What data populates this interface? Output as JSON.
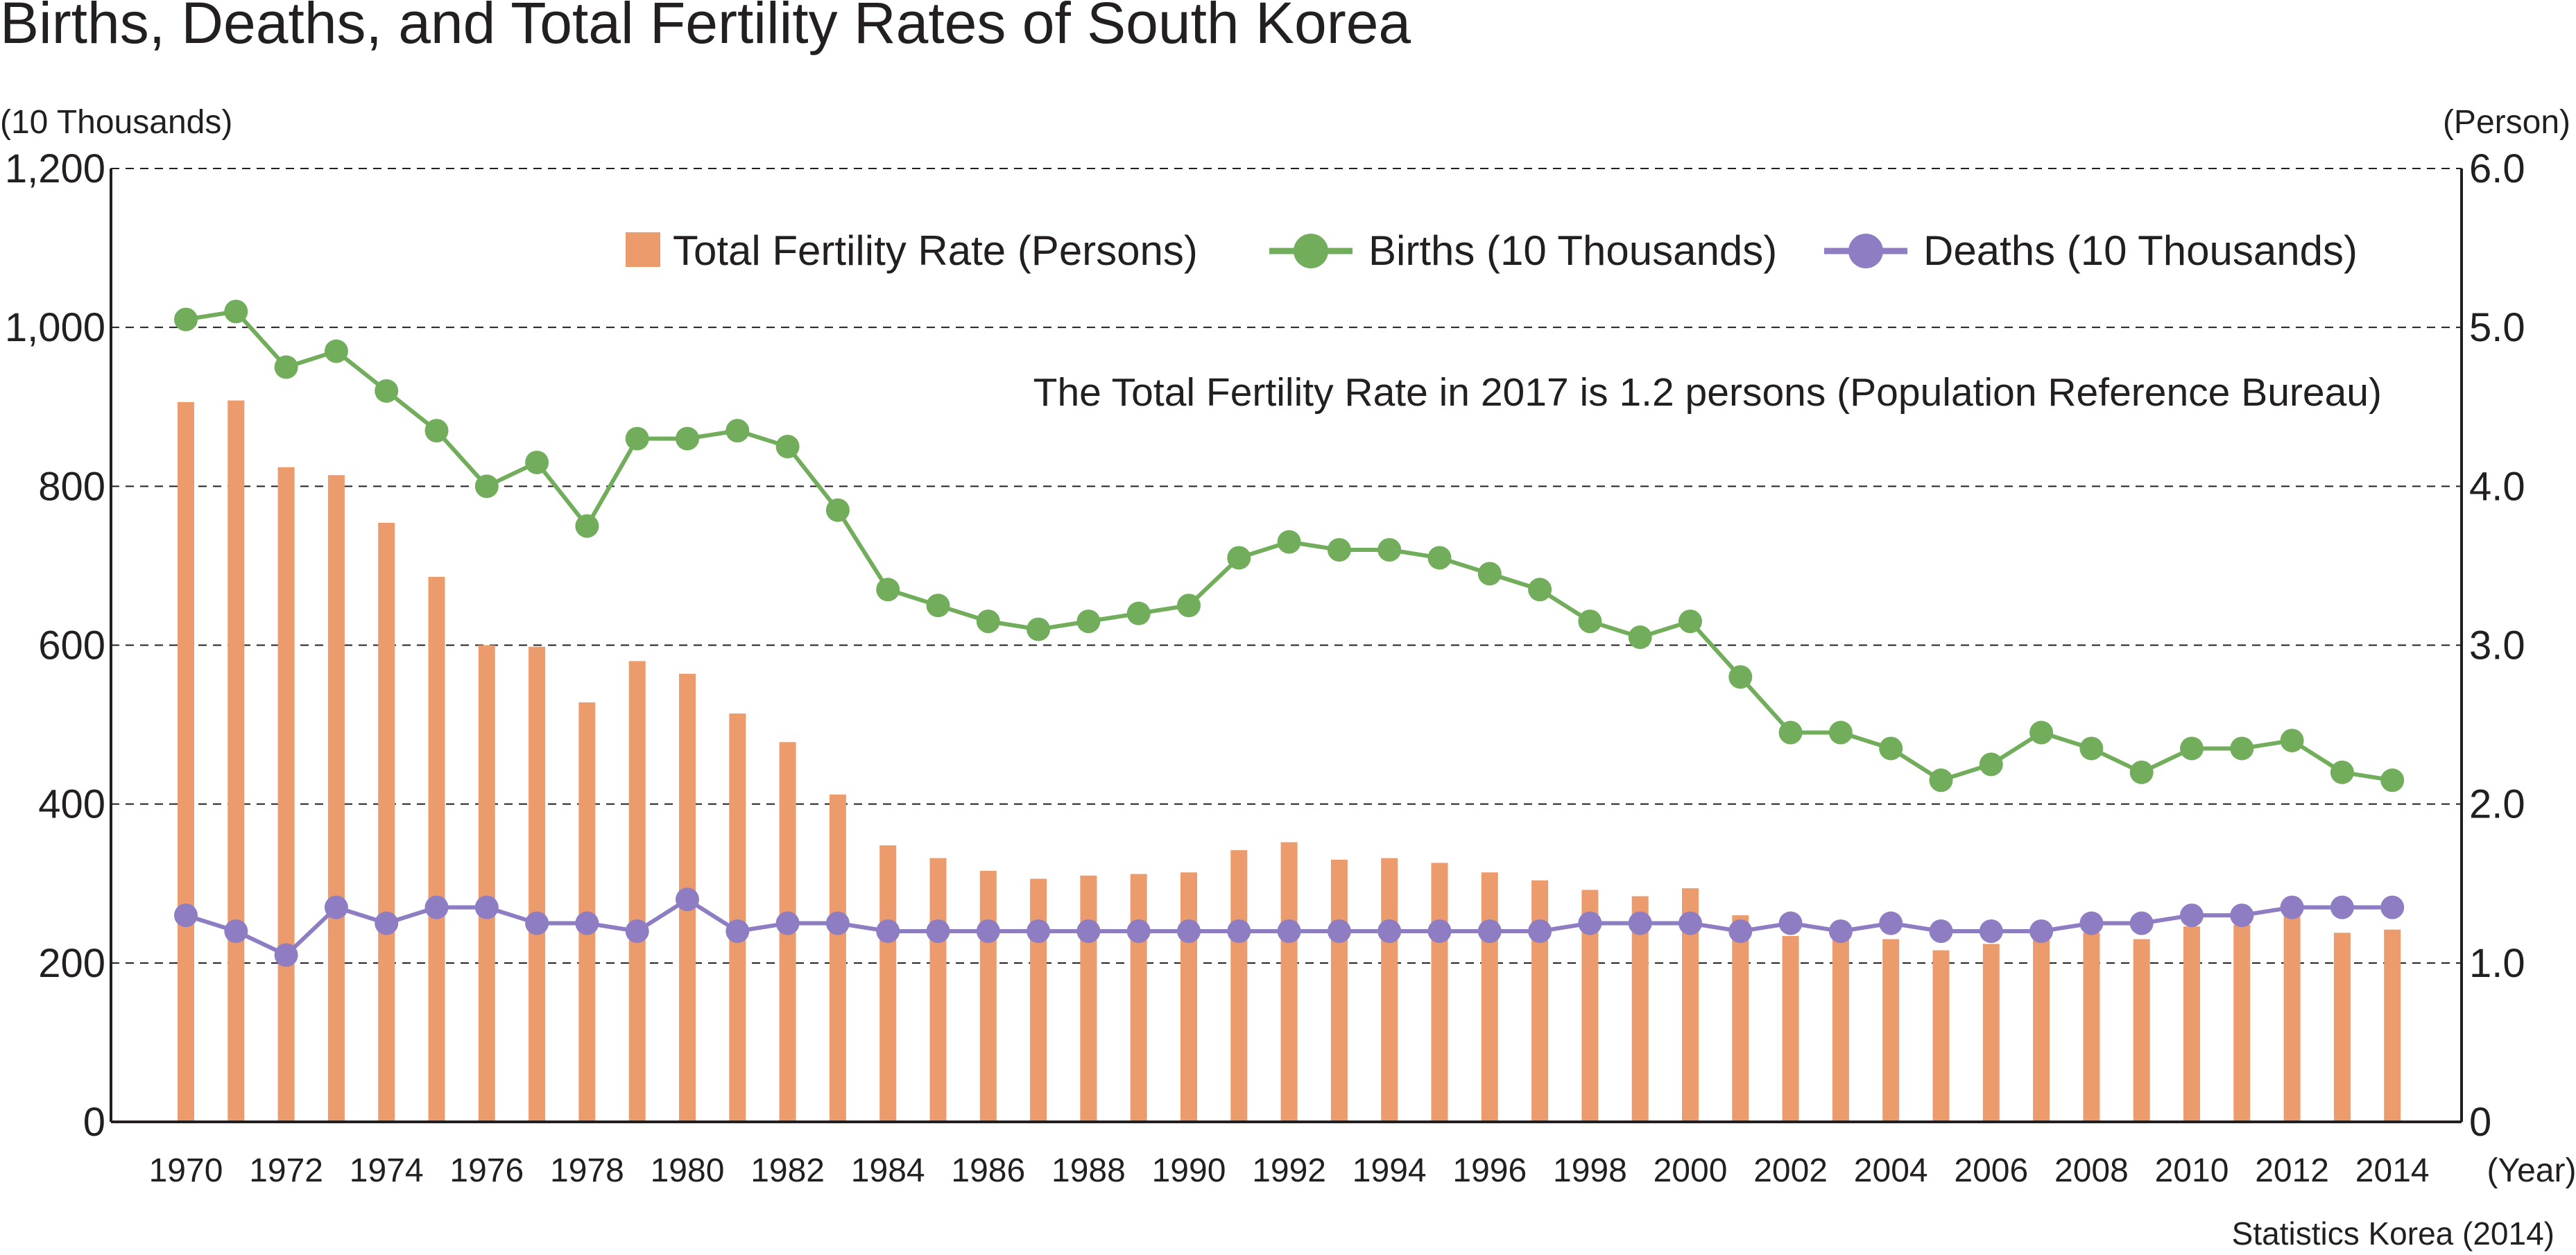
{
  "chart_data": {
    "type": "bar+line",
    "title": "Births, Deaths, and Total Fertility Rates of South Korea",
    "left_axis_unit": "(10 Thousands)",
    "right_axis_unit": "(Person)",
    "x_axis_unit": "(Year)",
    "source": "Statistics Korea (2014)",
    "annotation": "The Total Fertility Rate in 2017 is 1.2 persons (Population Reference Bureau)",
    "left_ylim": [
      0,
      1200
    ],
    "right_ylim": [
      0,
      6
    ],
    "left_ticks": [
      "0",
      "200",
      "400",
      "600",
      "800",
      "1,000",
      "1,200"
    ],
    "right_ticks": [
      "0",
      "1.0",
      "2.0",
      "3.0",
      "4.0",
      "5.0",
      "6.0"
    ],
    "x_tick_labels": [
      "1970",
      "1972",
      "1974",
      "1976",
      "1978",
      "1980",
      "1982",
      "1984",
      "1986",
      "1988",
      "1990",
      "1992",
      "1994",
      "1996",
      "1998",
      "2000",
      "2002",
      "2004",
      "2006",
      "2008",
      "2010",
      "2012",
      "2014"
    ],
    "grid": "horizontal dashed",
    "legend_position": "top",
    "years": [
      1970,
      1971,
      1972,
      1973,
      1974,
      1975,
      1976,
      1977,
      1978,
      1979,
      1980,
      1981,
      1982,
      1983,
      1984,
      1985,
      1986,
      1987,
      1988,
      1989,
      1990,
      1991,
      1992,
      1993,
      1994,
      1995,
      1996,
      1997,
      1998,
      1999,
      2000,
      2001,
      2002,
      2003,
      2004,
      2005,
      2006,
      2007,
      2008,
      2009,
      2010,
      2011,
      2012,
      2013,
      2014
    ],
    "series": [
      {
        "name": "Total Fertility Rate (Persons)",
        "type": "bar",
        "axis": "right",
        "color": "#ec9b6c",
        "values": [
          4.53,
          4.54,
          4.12,
          4.07,
          3.77,
          3.43,
          3.0,
          2.99,
          2.64,
          2.9,
          2.82,
          2.57,
          2.39,
          2.06,
          1.74,
          1.66,
          1.58,
          1.53,
          1.55,
          1.56,
          1.57,
          1.71,
          1.76,
          1.65,
          1.66,
          1.63,
          1.57,
          1.52,
          1.46,
          1.42,
          1.47,
          1.3,
          1.17,
          1.18,
          1.15,
          1.08,
          1.12,
          1.25,
          1.19,
          1.15,
          1.23,
          1.24,
          1.3,
          1.19,
          1.21
        ]
      },
      {
        "name": "Births (10 Thousands)",
        "type": "line",
        "axis": "left",
        "color": "#71ad5b",
        "values": [
          101,
          102,
          95,
          97,
          92,
          87,
          80,
          83,
          75,
          86,
          86,
          87,
          85,
          77,
          67,
          65,
          63,
          62,
          63,
          64,
          65,
          71,
          73,
          72,
          72,
          71,
          69,
          67,
          63,
          61,
          63,
          56,
          49,
          49,
          47,
          43,
          45,
          49,
          47,
          44,
          47,
          47,
          48,
          44,
          43
        ]
      },
      {
        "name": "Deaths (10 Thousands)",
        "type": "line",
        "axis": "left",
        "color": "#8e7dc2",
        "values": [
          26,
          24,
          21,
          27,
          25,
          27,
          27,
          25,
          25,
          24,
          28,
          24,
          25,
          25,
          24,
          24,
          24,
          24,
          24,
          24,
          24,
          24,
          24,
          24,
          24,
          24,
          24,
          24,
          25,
          25,
          25,
          24,
          25,
          24,
          25,
          24,
          24,
          24,
          25,
          25,
          26,
          26,
          27,
          27,
          27
        ]
      }
    ]
  }
}
